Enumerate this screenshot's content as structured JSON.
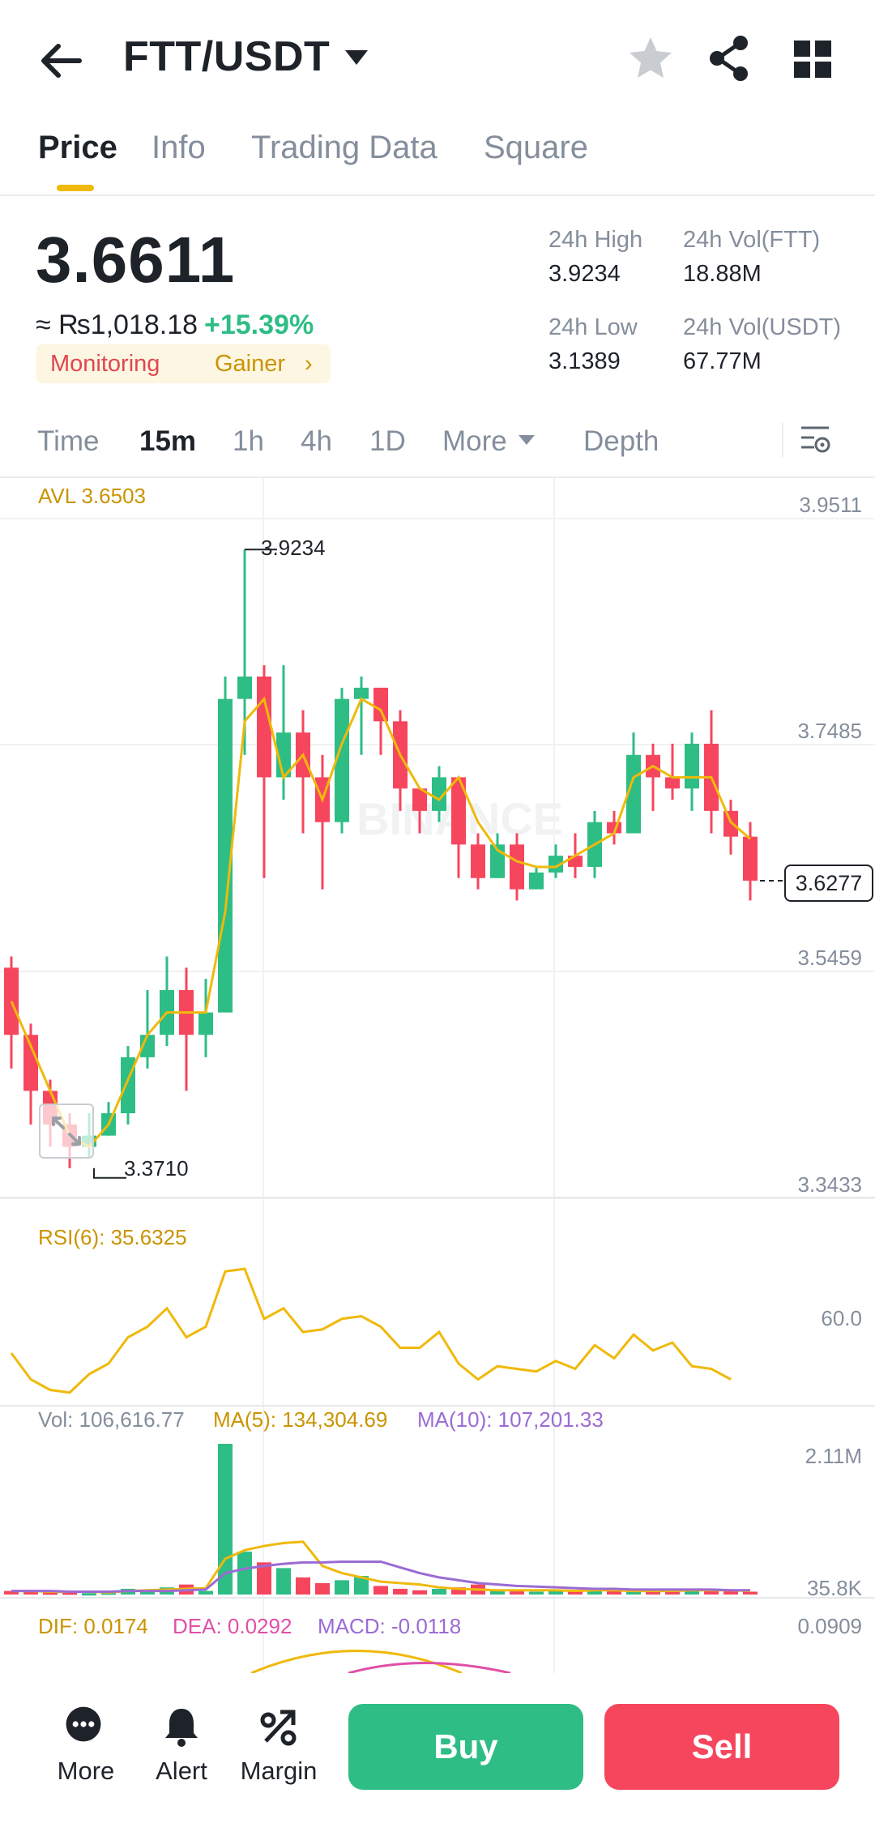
{
  "header": {
    "pair": "FTT/USDT"
  },
  "tabs": [
    {
      "label": "Price"
    },
    {
      "label": "Info"
    },
    {
      "label": "Trading Data"
    },
    {
      "label": "Square"
    }
  ],
  "price": {
    "last": "3.6611",
    "fiat": "≈ ₨1,018.18",
    "change": "+15.39%",
    "tag_monitoring": "Monitoring",
    "tag_gainer": "Gainer",
    "tag_chevron": "›"
  },
  "stats": {
    "high_label": "24h High",
    "high_value": "3.9234",
    "low_label": "24h Low",
    "low_value": "3.1389",
    "vol_base_label": "24h Vol(FTT)",
    "vol_base_value": "18.88M",
    "vol_quote_label": "24h Vol(USDT)",
    "vol_quote_value": "67.77M"
  },
  "intervals": [
    {
      "label": "Time"
    },
    {
      "label": "15m",
      "active": true
    },
    {
      "label": "1h"
    },
    {
      "label": "4h"
    },
    {
      "label": "1D"
    },
    {
      "label": "More"
    },
    {
      "label": "Depth"
    }
  ],
  "chart": {
    "avl_label": "AVL 3.6503",
    "price_axis": [
      "3.9511",
      "3.7485",
      "3.5459",
      "3.3433"
    ],
    "high_marker": "3.9234",
    "low_marker": "3.3710",
    "current_price_tag": "3.6277",
    "watermark": "BINANCE",
    "rsi_label": "RSI(6): 35.6325",
    "rsi_axis": "60.0",
    "vol_label": "Vol: 106,616.77",
    "vol_ma5_label": "MA(5): 134,304.69",
    "vol_ma10_label": "MA(10): 107,201.33",
    "vol_axis_top": "2.11M",
    "vol_axis_bottom": "35.8K",
    "dif_label": "DIF: 0.0174",
    "dea_label": "DEA: 0.0292",
    "macd_label": "MACD: -0.0118",
    "macd_axis": "0.0909",
    "colors": {
      "up": "#2ebd85",
      "down": "#f6465d",
      "avl": "#f0b90b",
      "ma10": "#9b6bd4",
      "dea": "#e14fa8"
    }
  },
  "chart_data": {
    "type": "candlestick",
    "ylim": [
      3.3433,
      3.9511
    ],
    "candles": [
      {
        "o": 3.55,
        "h": 3.56,
        "c": 3.49,
        "l": 3.46
      },
      {
        "o": 3.49,
        "h": 3.5,
        "c": 3.44,
        "l": 3.41
      },
      {
        "o": 3.44,
        "h": 3.45,
        "c": 3.41,
        "l": 3.39
      },
      {
        "o": 3.41,
        "h": 3.42,
        "c": 3.39,
        "l": 3.371
      },
      {
        "o": 3.39,
        "h": 3.42,
        "c": 3.4,
        "l": 3.38
      },
      {
        "o": 3.4,
        "h": 3.43,
        "c": 3.42,
        "l": 3.4
      },
      {
        "o": 3.42,
        "h": 3.48,
        "c": 3.47,
        "l": 3.41
      },
      {
        "o": 3.47,
        "h": 3.53,
        "c": 3.49,
        "l": 3.46
      },
      {
        "o": 3.49,
        "h": 3.56,
        "c": 3.53,
        "l": 3.48
      },
      {
        "o": 3.53,
        "h": 3.55,
        "c": 3.49,
        "l": 3.44
      },
      {
        "o": 3.49,
        "h": 3.54,
        "c": 3.51,
        "l": 3.47
      },
      {
        "o": 3.51,
        "h": 3.81,
        "c": 3.79,
        "l": 3.51
      },
      {
        "o": 3.79,
        "h": 3.9234,
        "c": 3.81,
        "l": 3.74
      },
      {
        "o": 3.81,
        "h": 3.82,
        "c": 3.72,
        "l": 3.63
      },
      {
        "o": 3.72,
        "h": 3.82,
        "c": 3.76,
        "l": 3.7
      },
      {
        "o": 3.76,
        "h": 3.78,
        "c": 3.72,
        "l": 3.67
      },
      {
        "o": 3.72,
        "h": 3.74,
        "c": 3.68,
        "l": 3.62
      },
      {
        "o": 3.68,
        "h": 3.8,
        "c": 3.79,
        "l": 3.67
      },
      {
        "o": 3.79,
        "h": 3.81,
        "c": 3.8,
        "l": 3.74
      },
      {
        "o": 3.8,
        "h": 3.8,
        "c": 3.77,
        "l": 3.74
      },
      {
        "o": 3.77,
        "h": 3.78,
        "c": 3.71,
        "l": 3.69
      },
      {
        "o": 3.71,
        "h": 3.71,
        "c": 3.69,
        "l": 3.67
      },
      {
        "o": 3.69,
        "h": 3.73,
        "c": 3.72,
        "l": 3.68
      },
      {
        "o": 3.72,
        "h": 3.72,
        "c": 3.66,
        "l": 3.63
      },
      {
        "o": 3.66,
        "h": 3.67,
        "c": 3.63,
        "l": 3.62
      },
      {
        "o": 3.63,
        "h": 3.67,
        "c": 3.66,
        "l": 3.63
      },
      {
        "o": 3.66,
        "h": 3.67,
        "c": 3.62,
        "l": 3.61
      },
      {
        "o": 3.62,
        "h": 3.64,
        "c": 3.635,
        "l": 3.62
      },
      {
        "o": 3.635,
        "h": 3.66,
        "c": 3.65,
        "l": 3.63
      },
      {
        "o": 3.65,
        "h": 3.67,
        "c": 3.64,
        "l": 3.63
      },
      {
        "o": 3.64,
        "h": 3.69,
        "c": 3.68,
        "l": 3.63
      },
      {
        "o": 3.68,
        "h": 3.69,
        "c": 3.67,
        "l": 3.66
      },
      {
        "o": 3.67,
        "h": 3.76,
        "c": 3.74,
        "l": 3.67
      },
      {
        "o": 3.74,
        "h": 3.75,
        "c": 3.72,
        "l": 3.69
      },
      {
        "o": 3.72,
        "h": 3.75,
        "c": 3.71,
        "l": 3.7
      },
      {
        "o": 3.71,
        "h": 3.76,
        "c": 3.75,
        "l": 3.69
      },
      {
        "o": 3.75,
        "h": 3.78,
        "c": 3.69,
        "l": 3.67
      },
      {
        "o": 3.69,
        "h": 3.7,
        "c": 3.667,
        "l": 3.651
      },
      {
        "o": 3.667,
        "h": 3.68,
        "c": 3.6277,
        "l": 3.61
      }
    ],
    "avl_line": [
      3.52,
      3.48,
      3.44,
      3.4,
      3.39,
      3.41,
      3.45,
      3.49,
      3.51,
      3.51,
      3.51,
      3.6,
      3.77,
      3.79,
      3.72,
      3.74,
      3.7,
      3.75,
      3.79,
      3.78,
      3.74,
      3.71,
      3.7,
      3.72,
      3.68,
      3.655,
      3.645,
      3.64,
      3.64,
      3.65,
      3.66,
      3.67,
      3.72,
      3.73,
      3.72,
      3.72,
      3.72,
      3.68,
      3.665
    ],
    "rsi": [
      60,
      50,
      46,
      45,
      52,
      56,
      66,
      70,
      77,
      66,
      70,
      91,
      92,
      73,
      77,
      68,
      69,
      73,
      74,
      70,
      62,
      62,
      68,
      56,
      50,
      55,
      54,
      53,
      57,
      54,
      63,
      58,
      67,
      61,
      64,
      55,
      54,
      50
    ],
    "rsi_ylim": [
      40,
      100
    ],
    "volume": [
      0.05,
      0.04,
      0.03,
      0.03,
      0.02,
      0.03,
      0.08,
      0.06,
      0.1,
      0.14,
      0.05,
      2.11,
      0.6,
      0.45,
      0.37,
      0.24,
      0.16,
      0.2,
      0.26,
      0.12,
      0.08,
      0.06,
      0.08,
      0.1,
      0.14,
      0.07,
      0.05,
      0.04,
      0.06,
      0.06,
      0.07,
      0.05,
      0.08,
      0.06,
      0.07,
      0.05,
      0.07,
      0.05,
      0.04
    ],
    "vol_ma5": [
      0.05,
      0.05,
      0.04,
      0.04,
      0.04,
      0.03,
      0.05,
      0.06,
      0.07,
      0.08,
      0.09,
      0.5,
      0.62,
      0.68,
      0.72,
      0.74,
      0.4,
      0.3,
      0.24,
      0.18,
      0.16,
      0.14,
      0.1,
      0.08,
      0.07,
      0.06,
      0.06,
      0.06,
      0.06,
      0.05,
      0.06,
      0.06,
      0.05,
      0.05,
      0.05,
      0.06,
      0.06,
      0.06,
      0.05
    ],
    "vol_ma10": [
      0.05,
      0.05,
      0.05,
      0.04,
      0.04,
      0.04,
      0.05,
      0.05,
      0.05,
      0.06,
      0.07,
      0.3,
      0.36,
      0.4,
      0.43,
      0.45,
      0.45,
      0.46,
      0.46,
      0.46,
      0.38,
      0.3,
      0.24,
      0.2,
      0.16,
      0.14,
      0.12,
      0.11,
      0.1,
      0.09,
      0.08,
      0.08,
      0.07,
      0.07,
      0.07,
      0.07,
      0.07,
      0.06,
      0.06
    ],
    "vol_ylim": [
      0,
      2.11
    ]
  },
  "bottom_nav": {
    "more_label": "More",
    "alert_label": "Alert",
    "margin_label": "Margin",
    "buy_label": "Buy",
    "sell_label": "Sell"
  }
}
